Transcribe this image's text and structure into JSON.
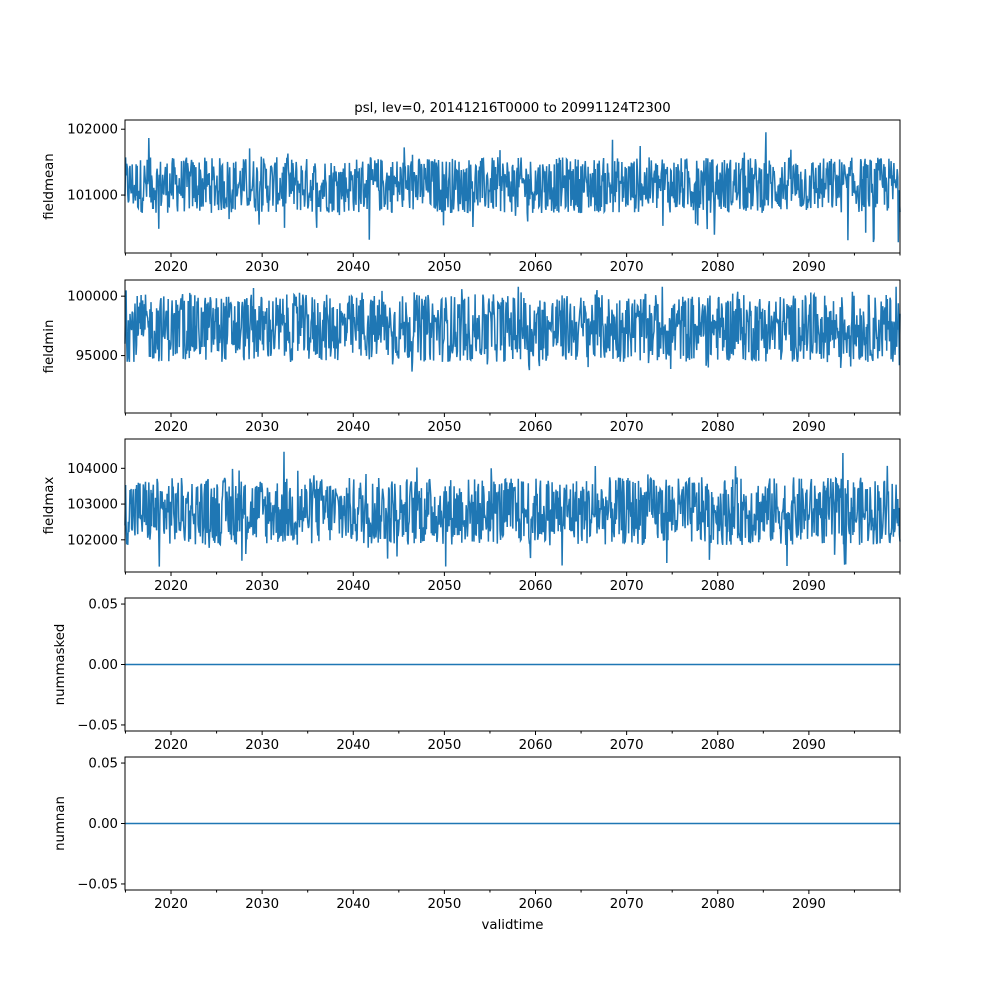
{
  "chart_data": [
    {
      "type": "line",
      "title": "psl, lev=0, 20141216T0000 to 20991124T2300",
      "ylabel": "fieldmean",
      "xlabel": "",
      "xlim": [
        2014.95,
        2100.0
      ],
      "xticks": [
        2020,
        2030,
        2040,
        2050,
        2060,
        2070,
        2080,
        2090
      ],
      "ylim": [
        100120,
        102140
      ],
      "yticks": [
        {
          "v": 101000,
          "label": "101000"
        },
        {
          "v": 102000,
          "label": "102000"
        }
      ],
      "series": {
        "name": "fieldmean",
        "center": 101150,
        "typical_low": 100750,
        "typical_high": 101600,
        "min": 100250,
        "max": 102050
      },
      "color": "#1f77b4"
    },
    {
      "type": "line",
      "ylabel": "fieldmin",
      "xlabel": "",
      "xlim": [
        2014.95,
        2100.0
      ],
      "xticks": [
        2020,
        2030,
        2040,
        2050,
        2060,
        2070,
        2080,
        2090
      ],
      "ylim": [
        90170,
        101360
      ],
      "yticks": [
        {
          "v": 95000,
          "label": "95000"
        },
        {
          "v": 100000,
          "label": "100000"
        }
      ],
      "series": {
        "name": "fieldmin",
        "center": 97300,
        "typical_low": 94300,
        "typical_high": 100000,
        "min": 90800,
        "max": 100800
      },
      "color": "#1f77b4"
    },
    {
      "type": "line",
      "ylabel": "fieldmax",
      "xlabel": "",
      "xlim": [
        2014.95,
        2100.0
      ],
      "xticks": [
        2020,
        2030,
        2040,
        2050,
        2060,
        2070,
        2080,
        2090
      ],
      "ylim": [
        101100,
        104820
      ],
      "yticks": [
        {
          "v": 102000,
          "label": "102000"
        },
        {
          "v": 103000,
          "label": "103000"
        },
        {
          "v": 104000,
          "label": "104000"
        }
      ],
      "series": {
        "name": "fieldmax",
        "center": 102800,
        "typical_low": 102000,
        "typical_high": 103900,
        "min": 101250,
        "max": 104650
      },
      "color": "#1f77b4"
    },
    {
      "type": "line",
      "ylabel": "nummasked",
      "xlabel": "",
      "xlim": [
        2014.95,
        2100.0
      ],
      "xticks": [
        2020,
        2030,
        2040,
        2050,
        2060,
        2070,
        2080,
        2090
      ],
      "ylim": [
        -0.055,
        0.055
      ],
      "yticks": [
        {
          "v": -0.05,
          "label": "−0.05"
        },
        {
          "v": 0.0,
          "label": "0.00"
        },
        {
          "v": 0.05,
          "label": "0.05"
        }
      ],
      "series": {
        "name": "nummasked",
        "constant": 0.0
      },
      "color": "#1f77b4"
    },
    {
      "type": "line",
      "ylabel": "numnan",
      "xlabel": "validtime",
      "xlim": [
        2014.95,
        2100.0
      ],
      "xticks": [
        2020,
        2030,
        2040,
        2050,
        2060,
        2070,
        2080,
        2090
      ],
      "ylim": [
        -0.055,
        0.055
      ],
      "yticks": [
        {
          "v": -0.05,
          "label": "−0.05"
        },
        {
          "v": 0.0,
          "label": "0.00"
        },
        {
          "v": 0.05,
          "label": "0.05"
        }
      ],
      "series": {
        "name": "numnan",
        "constant": 0.0
      },
      "color": "#1f77b4"
    }
  ]
}
